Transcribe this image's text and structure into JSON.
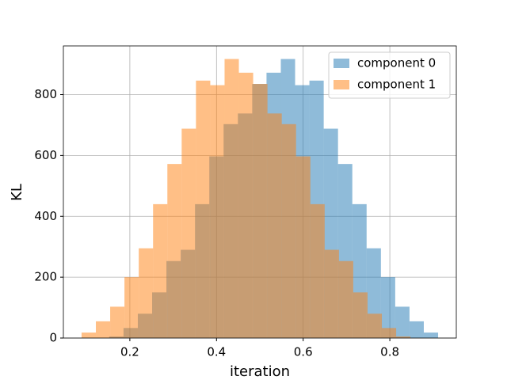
{
  "chart_data": {
    "type": "histogram",
    "x_label": "iteration",
    "y_label": "KL",
    "xlim": [
      0.0466,
      0.9534
    ],
    "ylim": [
      0,
      960
    ],
    "xticks": [
      0.2,
      0.4,
      0.6,
      0.8
    ],
    "yticks": [
      0,
      200,
      400,
      600,
      800
    ],
    "grid": true,
    "legend": "upper right",
    "alpha": 0.5,
    "series": [
      {
        "name": "component 0",
        "color": "#1f77b4",
        "bins": [
          0.1524,
          0.1854,
          0.2184,
          0.2514,
          0.2844,
          0.3174,
          0.3504,
          0.3834,
          0.4164,
          0.4494,
          0.4824,
          0.5154,
          0.5484,
          0.5814,
          0.6144,
          0.6474,
          0.6804,
          0.7134,
          0.7464,
          0.7794,
          0.8124,
          0.8454,
          0.8784,
          0.9114
        ],
        "values": [
          5,
          33,
          80,
          150,
          253,
          290,
          440,
          597,
          703,
          738,
          835,
          872,
          917,
          831,
          846,
          688,
          572,
          440,
          295,
          200,
          103,
          55,
          18
        ]
      },
      {
        "name": "component 1",
        "color": "#ff7f0e",
        "bins": [
          0.0886,
          0.1216,
          0.1546,
          0.1876,
          0.2206,
          0.2536,
          0.2866,
          0.3196,
          0.3526,
          0.3856,
          0.4186,
          0.4516,
          0.4846,
          0.5176,
          0.5506,
          0.5836,
          0.6166,
          0.6496,
          0.6826,
          0.7156,
          0.7486,
          0.7816,
          0.8146,
          0.8476
        ],
        "values": [
          18,
          55,
          103,
          200,
          295,
          440,
          572,
          688,
          846,
          831,
          917,
          872,
          835,
          738,
          703,
          597,
          440,
          290,
          253,
          150,
          80,
          33,
          5
        ]
      }
    ]
  }
}
